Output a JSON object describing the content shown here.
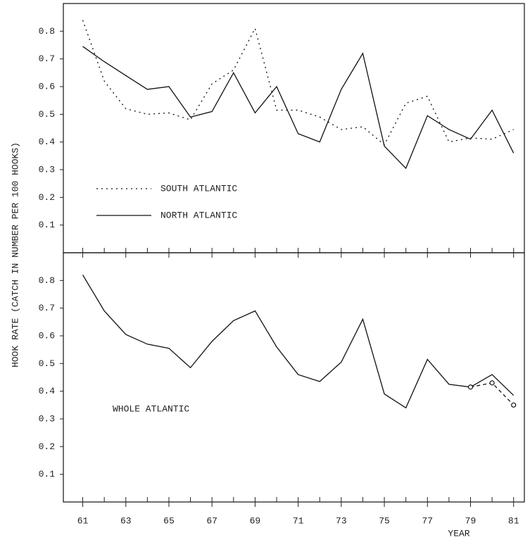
{
  "chart_data": [
    {
      "type": "line",
      "ylabel": "HOOK RATE (CATCH IN NUMBER PER 100 HOOKS)",
      "x": [
        61,
        62,
        63,
        64,
        65,
        66,
        67,
        68,
        69,
        70,
        71,
        72,
        73,
        74,
        75,
        76,
        77,
        78,
        79,
        80,
        81
      ],
      "xlim": [
        60.1,
        81.5
      ],
      "xticks": [
        61,
        63,
        65,
        67,
        69,
        71,
        73,
        75,
        77,
        79,
        81
      ],
      "xminorticks": [
        62,
        64,
        66,
        68,
        70,
        72,
        74,
        76,
        78,
        80
      ],
      "ylim": [
        0,
        0.9
      ],
      "yticks": [
        0.1,
        0.2,
        0.3,
        0.4,
        0.5,
        0.6,
        0.7,
        0.8
      ],
      "series": [
        {
          "name": "SOUTH ATLANTIC",
          "color": "#111111",
          "style": "dotted",
          "values": [
            0.84,
            0.62,
            0.52,
            0.5,
            0.505,
            0.48,
            0.61,
            0.66,
            0.81,
            0.515,
            0.515,
            0.49,
            0.445,
            0.455,
            0.39,
            0.54,
            0.565,
            0.4,
            0.415,
            0.41,
            0.445
          ]
        },
        {
          "name": "NORTH ATLANTIC",
          "color": "#111111",
          "style": "solid",
          "values": [
            0.745,
            0.69,
            0.64,
            0.59,
            0.6,
            0.49,
            0.51,
            0.65,
            0.505,
            0.6,
            0.43,
            0.4,
            0.59,
            0.72,
            0.385,
            0.305,
            0.495,
            0.445,
            0.41,
            0.515,
            0.36
          ]
        }
      ]
    },
    {
      "type": "line",
      "annotation": "WHOLE ATLANTIC",
      "xlabel": "YEAR",
      "x": [
        61,
        62,
        63,
        64,
        65,
        66,
        67,
        68,
        69,
        70,
        71,
        72,
        73,
        74,
        75,
        76,
        77,
        78,
        79,
        80,
        81
      ],
      "xlim": [
        60.1,
        81.5
      ],
      "xticks": [
        61,
        63,
        65,
        67,
        69,
        71,
        73,
        75,
        77,
        79,
        81
      ],
      "xminorticks": [
        62,
        64,
        66,
        68,
        70,
        72,
        74,
        76,
        78,
        80
      ],
      "ylim": [
        0,
        0.9
      ],
      "yticks": [
        0.1,
        0.2,
        0.3,
        0.4,
        0.5,
        0.6,
        0.7,
        0.8
      ],
      "series": [
        {
          "color": "#111111",
          "style": "solid",
          "values": [
            0.82,
            0.69,
            0.605,
            0.57,
            0.555,
            0.485,
            0.58,
            0.655,
            0.69,
            0.56,
            0.46,
            0.435,
            0.505,
            0.66,
            0.39,
            0.34,
            0.515,
            0.425,
            0.415,
            0.46,
            0.385
          ]
        },
        {
          "color": "#111111",
          "style": "dashed",
          "marker": "circle",
          "x": [
            79,
            80,
            81
          ],
          "values": [
            0.415,
            0.43,
            0.35
          ]
        }
      ]
    }
  ]
}
